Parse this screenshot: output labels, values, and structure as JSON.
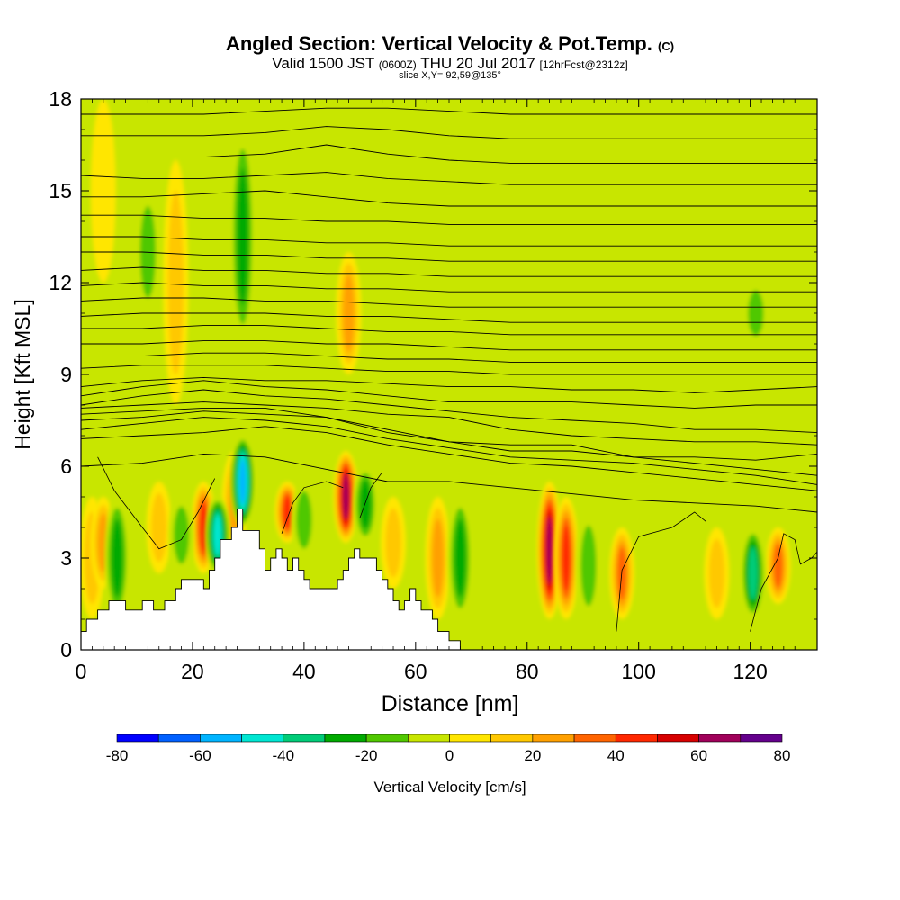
{
  "chart_data": {
    "type": "heatmap",
    "title": "Angled Section: Vertical Velocity & Pot.Temp.",
    "title_mark": "(C)",
    "subtitle": {
      "valid": "Valid 1500 JST",
      "utc": "(0600Z)",
      "date": "THU 20 Jul 2017",
      "forecast": "[12hrFcst@2312z]"
    },
    "slice": "slice X,Y= 92,59@135°",
    "xlabel": "Distance [nm]",
    "ylabel": "Height [Kft MSL]",
    "xlim": [
      0,
      132
    ],
    "ylim": [
      0,
      18
    ],
    "x_ticks": [
      0,
      20,
      40,
      60,
      80,
      100,
      120
    ],
    "y_ticks": [
      0,
      3,
      6,
      9,
      12,
      15,
      18
    ],
    "colorbar": {
      "label": "Vertical Velocity [cm/s]",
      "ticks": [
        -80,
        -60,
        -40,
        -20,
        0,
        20,
        40,
        60,
        80
      ],
      "levels": [
        -80,
        -70,
        -60,
        -50,
        -40,
        -30,
        -20,
        -10,
        0,
        10,
        20,
        30,
        40,
        50,
        60,
        70,
        80
      ],
      "colors": [
        "#0000ff",
        "#0060ff",
        "#00b4ff",
        "#00e6d2",
        "#00cc78",
        "#00aa00",
        "#50c800",
        "#c8e600",
        "#ffe600",
        "#ffc800",
        "#ffa000",
        "#ff6400",
        "#ff2800",
        "#d70000",
        "#a0005a",
        "#64008c"
      ]
    },
    "background_color": "#c8e600",
    "updraft_cores": [
      {
        "x": 2,
        "z_bottom": 1,
        "z_top": 5,
        "w": 15
      },
      {
        "x": 4,
        "z_bottom": 2,
        "z_top": 5,
        "w": 25
      },
      {
        "x": 14,
        "z_bottom": 2.5,
        "z_top": 5.5,
        "w": 20
      },
      {
        "x": 22,
        "z_bottom": 2.5,
        "z_top": 5.5,
        "w": 45
      },
      {
        "x": 27.5,
        "z_bottom": 3,
        "z_top": 6.5,
        "w": 30
      },
      {
        "x": 37,
        "z_bottom": 3.5,
        "z_top": 5.5,
        "w": 45
      },
      {
        "x": 47.5,
        "z_bottom": 3.5,
        "z_top": 6.5,
        "w": 65
      },
      {
        "x": 56,
        "z_bottom": 2,
        "z_top": 5,
        "w": 20
      },
      {
        "x": 64,
        "z_bottom": 1,
        "z_top": 5,
        "w": 30
      },
      {
        "x": 84,
        "z_bottom": 1,
        "z_top": 5.5,
        "w": 65
      },
      {
        "x": 87,
        "z_bottom": 1,
        "z_top": 5,
        "w": 50
      },
      {
        "x": 97,
        "z_bottom": 1,
        "z_top": 4,
        "w": 40
      },
      {
        "x": 114,
        "z_bottom": 1,
        "z_top": 4,
        "w": 20
      },
      {
        "x": 125,
        "z_bottom": 1.5,
        "z_top": 4,
        "w": 35
      },
      {
        "x": 17,
        "z_bottom": 8,
        "z_top": 16,
        "w": 20
      },
      {
        "x": 48,
        "z_bottom": 9,
        "z_top": 13,
        "w": 25
      },
      {
        "x": 4,
        "z_bottom": 12,
        "z_top": 18,
        "w": 12
      }
    ],
    "downdraft_cores": [
      {
        "x": 6.5,
        "z_bottom": 1,
        "z_top": 5,
        "w": -25
      },
      {
        "x": 18,
        "z_bottom": 2.5,
        "z_top": 5,
        "w": -20
      },
      {
        "x": 24.5,
        "z_bottom": 2.5,
        "z_top": 5,
        "w": -45
      },
      {
        "x": 29,
        "z_bottom": 4,
        "z_top": 7,
        "w": -60
      },
      {
        "x": 40,
        "z_bottom": 3,
        "z_top": 5.5,
        "w": -20
      },
      {
        "x": 51,
        "z_bottom": 3.5,
        "z_top": 6,
        "w": -25
      },
      {
        "x": 68,
        "z_bottom": 1,
        "z_top": 5,
        "w": -25
      },
      {
        "x": 91,
        "z_bottom": 1,
        "z_top": 4.5,
        "w": -20
      },
      {
        "x": 120.5,
        "z_bottom": 1,
        "z_top": 4,
        "w": -40
      },
      {
        "x": 29,
        "z_bottom": 10,
        "z_top": 17,
        "w": -25
      },
      {
        "x": 12,
        "z_bottom": 11,
        "z_top": 15,
        "w": -15
      },
      {
        "x": 121,
        "z_bottom": 10,
        "z_top": 12,
        "w": -15
      }
    ],
    "terrain": {
      "x": [
        0,
        1,
        1,
        3,
        3,
        5,
        5,
        8,
        8,
        11,
        11,
        13,
        13,
        15,
        15,
        17,
        17,
        18,
        18,
        19,
        19,
        22,
        22,
        23,
        23,
        24,
        24,
        25,
        25,
        27,
        27,
        28,
        28,
        29,
        29,
        32,
        32,
        33,
        33,
        34,
        34,
        35,
        35,
        36,
        36,
        37,
        37,
        38,
        38,
        39,
        39,
        40,
        40,
        41,
        41,
        42,
        42,
        43,
        43,
        46,
        46,
        47,
        47,
        48,
        48,
        49,
        49,
        50,
        50,
        53,
        53,
        54,
        54,
        55,
        55,
        56,
        56,
        57,
        57,
        58,
        58,
        59,
        59,
        60,
        60,
        61,
        61,
        62,
        62,
        63,
        63,
        64,
        64,
        66,
        66,
        68,
        68,
        71,
        71,
        132
      ],
      "z": [
        0.6,
        0.6,
        1,
        1,
        1.3,
        1.3,
        1.6,
        1.6,
        1.3,
        1.3,
        1.6,
        1.6,
        1.3,
        1.3,
        1.6,
        1.6,
        2,
        2,
        2.3,
        2.3,
        2.3,
        2.3,
        2,
        2,
        2.6,
        2.6,
        3,
        3,
        3.6,
        3.6,
        4,
        4,
        4.6,
        4.6,
        3.9,
        3.9,
        3.3,
        3.3,
        2.6,
        2.6,
        3,
        3,
        3.3,
        3.3,
        3,
        3,
        2.6,
        2.6,
        3,
        3,
        2.6,
        2.6,
        2.3,
        2.3,
        2,
        2,
        2,
        2,
        2,
        2,
        2.3,
        2.3,
        2.6,
        2.6,
        3,
        3,
        3.3,
        3.3,
        3,
        3,
        2.6,
        2.6,
        2.3,
        2.3,
        2,
        2,
        1.6,
        1.6,
        1.3,
        1.3,
        1.6,
        1.6,
        2,
        2,
        1.6,
        1.6,
        1.3,
        1.3,
        1.3,
        1.3,
        1,
        1,
        0.6,
        0.6,
        0.3,
        0.3,
        0,
        0,
        0,
        0
      ]
    },
    "theta_contours": {
      "x": [
        0,
        11,
        22,
        33,
        44,
        55,
        66,
        77,
        88,
        99,
        110,
        121,
        132
      ],
      "lines": [
        {
          "label": "",
          "z": [
            6,
            6.1,
            6.4,
            6.3,
            5.9,
            5.5,
            5.5,
            5.3,
            5.1,
            4.9,
            4.8,
            4.7,
            4.5
          ]
        },
        {
          "label": "",
          "z": [
            6.9,
            7,
            7.1,
            7.3,
            7.1,
            6.7,
            6.4,
            6.1,
            6,
            5.8,
            5.6,
            5.4,
            5.2
          ]
        },
        {
          "label": "",
          "z": [
            7.2,
            7.4,
            7.6,
            7.5,
            7.3,
            6.9,
            6.6,
            6.3,
            6.2,
            6.1,
            5.9,
            5.7,
            5.4
          ]
        },
        {
          "label": "",
          "z": [
            7.5,
            7.6,
            7.8,
            7.7,
            7.6,
            7.1,
            6.8,
            6.5,
            6.5,
            6.3,
            6.1,
            5.9,
            5.7
          ]
        },
        {
          "label": "",
          "z": [
            7.7,
            7.8,
            7.9,
            7.9,
            7.6,
            7.2,
            6.8,
            6.7,
            6.7,
            6.3,
            6.3,
            6.2,
            6.4
          ]
        },
        {
          "label": "",
          "z": [
            7.9,
            8,
            8.1,
            8,
            7.9,
            7.7,
            7.6,
            7.2,
            7,
            6.9,
            6.8,
            6.8,
            6.7
          ]
        },
        {
          "label": "",
          "z": [
            8,
            8.3,
            8.5,
            8.3,
            8.2,
            8,
            7.8,
            7.6,
            7.5,
            7.4,
            7.2,
            7.2,
            7.1
          ]
        },
        {
          "label": "",
          "z": [
            8.3,
            8.6,
            8.8,
            8.6,
            8.5,
            8.3,
            8.1,
            8.1,
            8.1,
            8,
            7.9,
            8,
            8
          ]
        },
        {
          "label": "",
          "z": [
            8.6,
            8.8,
            8.9,
            8.8,
            8.8,
            8.7,
            8.6,
            8.6,
            8.5,
            8.5,
            8.4,
            8.5,
            8.6
          ]
        },
        {
          "label": "",
          "z": [
            9.2,
            9.3,
            9.3,
            9.3,
            9.2,
            9.1,
            9.1,
            9,
            9,
            9,
            9,
            9,
            9
          ]
        },
        {
          "label": "",
          "z": [
            9.6,
            9.6,
            9.7,
            9.7,
            9.6,
            9.5,
            9.5,
            9.4,
            9.4,
            9.4,
            9.4,
            9.4,
            9.4
          ]
        },
        {
          "label": "",
          "z": [
            10,
            10,
            10.1,
            10.1,
            10,
            10,
            9.9,
            9.8,
            9.8,
            9.8,
            9.8,
            9.8,
            9.8
          ]
        },
        {
          "label": "",
          "z": [
            10.5,
            10.5,
            10.6,
            10.6,
            10.5,
            10.4,
            10.4,
            10.3,
            10.3,
            10.3,
            10.3,
            10.3,
            10.3
          ]
        },
        {
          "label": "",
          "z": [
            10.9,
            11,
            11,
            11,
            10.9,
            10.9,
            10.8,
            10.7,
            10.7,
            10.7,
            10.7,
            10.7,
            10.7
          ]
        },
        {
          "label": "",
          "z": [
            11.4,
            11.5,
            11.5,
            11.4,
            11.4,
            11.3,
            11.2,
            11.2,
            11.2,
            11.2,
            11.2,
            11.2,
            11.2
          ]
        },
        {
          "label": "",
          "z": [
            11.9,
            12,
            11.9,
            11.9,
            11.8,
            11.8,
            11.7,
            11.7,
            11.7,
            11.7,
            11.7,
            11.7,
            11.7
          ]
        },
        {
          "label": "",
          "z": [
            12.4,
            12.5,
            12.4,
            12.4,
            12.3,
            12.3,
            12.2,
            12.2,
            12.2,
            12.2,
            12.2,
            12.2,
            12.2
          ]
        },
        {
          "label": "",
          "z": [
            13,
            13,
            12.9,
            12.9,
            12.8,
            12.8,
            12.7,
            12.7,
            12.7,
            12.7,
            12.7,
            12.7,
            12.7
          ]
        },
        {
          "label": "",
          "z": [
            13.5,
            13.5,
            13.4,
            13.4,
            13.3,
            13.3,
            13.2,
            13.2,
            13.2,
            13.2,
            13.2,
            13.2,
            13.2
          ]
        },
        {
          "label": "",
          "z": [
            14.2,
            14.2,
            14.1,
            14.1,
            14,
            14,
            13.9,
            13.9,
            13.9,
            13.9,
            13.9,
            13.9,
            13.9
          ]
        },
        {
          "label": "",
          "z": [
            14.8,
            14.8,
            14.9,
            15,
            14.8,
            14.6,
            14.5,
            14.5,
            14.5,
            14.5,
            14.5,
            14.5,
            14.5
          ]
        },
        {
          "label": "",
          "z": [
            15.5,
            15.4,
            15.4,
            15.5,
            15.6,
            15.4,
            15.3,
            15.2,
            15.2,
            15.2,
            15.2,
            15.2,
            15.2
          ]
        },
        {
          "label": "",
          "z": [
            16.1,
            16.1,
            16.1,
            16.2,
            16.5,
            16.2,
            16,
            15.9,
            15.9,
            15.9,
            15.9,
            15.9,
            15.9
          ]
        },
        {
          "label": "",
          "z": [
            16.8,
            16.8,
            16.8,
            16.9,
            17.1,
            17,
            16.8,
            16.7,
            16.7,
            16.7,
            16.7,
            16.7,
            16.7
          ]
        },
        {
          "label": "",
          "z": [
            17.5,
            17.5,
            17.5,
            17.6,
            17.7,
            17.7,
            17.6,
            17.5,
            17.5,
            17.5,
            17.5,
            17.5,
            17.5
          ]
        }
      ]
    },
    "boundary_contours": [
      {
        "x": [
          3,
          6,
          11,
          14,
          18,
          21,
          24
        ],
        "z": [
          6.3,
          5.2,
          4,
          3.3,
          3.6,
          4.5,
          5.6
        ]
      },
      {
        "x": [
          36,
          38,
          40,
          44,
          47
        ],
        "z": [
          3.8,
          4.8,
          5.3,
          5.5,
          5.3
        ]
      },
      {
        "x": [
          50,
          52,
          54
        ],
        "z": [
          4.3,
          5.3,
          5.8
        ]
      },
      {
        "x": [
          96,
          97,
          100,
          106,
          110,
          112
        ],
        "z": [
          0.6,
          2.6,
          3.7,
          4,
          4.5,
          4.2
        ]
      },
      {
        "x": [
          120,
          122,
          125,
          126,
          128,
          129,
          131,
          132
        ],
        "z": [
          0.6,
          2,
          3,
          3.8,
          3.6,
          2.8,
          3,
          3.2
        ]
      }
    ]
  }
}
